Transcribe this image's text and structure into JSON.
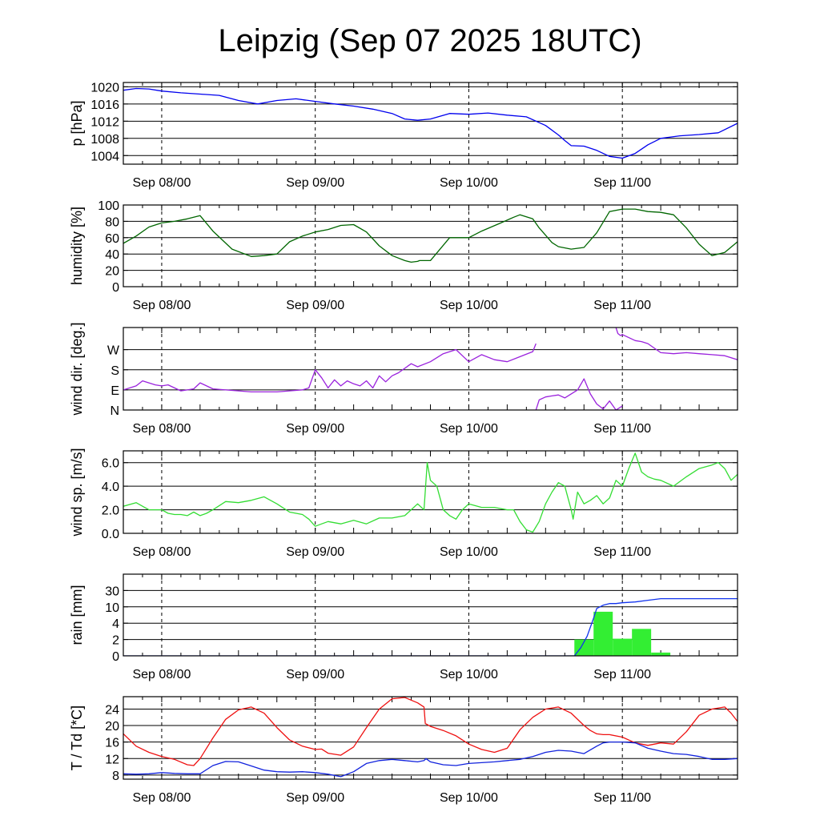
{
  "title": "Leipzig (Sep 07 2025 18UTC)",
  "chart_data": {
    "type": "line",
    "title": "Leipzig (Sep 07 2025 18UTC)",
    "x_unit": "hours since Sep 07 18UTC",
    "x_range": [
      0,
      96
    ],
    "x_ticks": [
      {
        "hour": 6,
        "label": "Sep 08/00"
      },
      {
        "hour": 30,
        "label": "Sep 09/00"
      },
      {
        "hour": 54,
        "label": "Sep 10/00"
      },
      {
        "hour": 78,
        "label": "Sep 11/00"
      }
    ],
    "panels": [
      {
        "id": "pressure",
        "ylabel": "p [hPa]",
        "ylim": [
          1002,
          1021
        ],
        "yticks": [
          1004,
          1008,
          1012,
          1016,
          1020
        ],
        "ytick_labels": [
          "1004",
          "1008",
          "1012",
          "1016",
          "1020"
        ],
        "series": [
          {
            "name": "pressure",
            "color": "#0000ee",
            "x": [
              0,
              2,
              4,
              6,
              9,
              12,
              15,
              18,
              21,
              24,
              27,
              30,
              33,
              36,
              39,
              42,
              44,
              46,
              48,
              51,
              54,
              57,
              60,
              63,
              66,
              68,
              69,
              70,
              72,
              74,
              76,
              78,
              80,
              82,
              84,
              87,
              90,
              93,
              96
            ],
            "y": [
              1019.2,
              1019.6,
              1019.5,
              1019.0,
              1018.6,
              1018.3,
              1018.0,
              1016.8,
              1016.0,
              1016.8,
              1017.2,
              1016.6,
              1016.0,
              1015.5,
              1014.8,
              1013.8,
              1012.5,
              1012.2,
              1012.5,
              1013.8,
              1013.6,
              1013.9,
              1013.4,
              1013.0,
              1011.0,
              1008.8,
              1007.5,
              1006.3,
              1006.2,
              1005.2,
              1003.8,
              1003.4,
              1004.5,
              1006.5,
              1008.0,
              1008.6,
              1008.9,
              1009.3,
              1011.5
            ]
          }
        ]
      },
      {
        "id": "humidity",
        "ylabel": "humidity [%]",
        "ylim": [
          0,
          100
        ],
        "yticks": [
          0,
          20,
          40,
          60,
          80,
          100
        ],
        "ytick_labels": [
          "0",
          "20",
          "40",
          "60",
          "80",
          "100"
        ],
        "series": [
          {
            "name": "humidity",
            "color": "#006600",
            "x": [
              0,
              2,
              4,
              6,
              8,
              10,
              12,
              14,
              17,
              20,
              22,
              24,
              26,
              28,
              30,
              32,
              34,
              36,
              38,
              40,
              42,
              44,
              45,
              46,
              46.3,
              48,
              51,
              54,
              56,
              59,
              61,
              62,
              64,
              65,
              66,
              67,
              68,
              70,
              72,
              74,
              76,
              78,
              80,
              82,
              84,
              86,
              88,
              90,
              92,
              94,
              96
            ],
            "y": [
              53,
              62,
              73,
              78,
              80,
              83,
              87,
              68,
              46,
              37,
              38,
              40,
              55,
              62,
              67,
              70,
              75,
              76,
              67,
              50,
              38,
              32,
              30,
              31,
              32,
              32,
              60,
              60,
              68,
              78,
              85,
              88,
              83,
              72,
              63,
              54,
              49,
              46,
              48,
              66,
              92,
              95,
              95,
              92,
              91,
              88,
              72,
              52,
              38,
              42,
              55
            ]
          }
        ]
      },
      {
        "id": "wind_direction",
        "ylabel": "wind dir. [deg.]",
        "ylim": [
          0,
          410
        ],
        "yticks": [
          0,
          100,
          200,
          300
        ],
        "ytick_labels": [
          "N",
          "E",
          "S",
          "W"
        ],
        "series": [
          {
            "name": "wind_direction",
            "color": "#9a22dd",
            "x": [
              0,
              2,
              3,
              5,
              6,
              7,
              9,
              11,
              12,
              14,
              16,
              18,
              20,
              22,
              24,
              26,
              28,
              29,
              30,
              31,
              32,
              33,
              34,
              35,
              36,
              37,
              38,
              39,
              40,
              41,
              42,
              43,
              45,
              46,
              48,
              50,
              52,
              53,
              54,
              56,
              58,
              60,
              62,
              64,
              64.5
            ],
            "y": [
              100,
              120,
              145,
              125,
              120,
              125,
              95,
              105,
              135,
              105,
              100,
              95,
              90,
              90,
              90,
              95,
              100,
              110,
              200,
              160,
              110,
              150,
              120,
              145,
              130,
              120,
              145,
              110,
              170,
              140,
              170,
              185,
              230,
              215,
              240,
              280,
              300,
              270,
              240,
              275,
              250,
              240,
              265,
              290,
              330
            ]
          },
          {
            "name": "wind_direction_2",
            "color": "#9a22dd",
            "x": [
              64.5,
              65,
              66,
              67,
              68,
              69,
              70,
              71,
              72,
              73,
              74,
              75,
              76,
              77,
              78
            ],
            "y": [
              0,
              50,
              65,
              70,
              75,
              60,
              80,
              100,
              155,
              80,
              30,
              5,
              45,
              0,
              20
            ]
          },
          {
            "name": "wind_direction_3",
            "color": "#9a22dd",
            "x": [
              77,
              77.3,
              77.7,
              78,
              79,
              80,
              81,
              82,
              84,
              86,
              88,
              90,
              92,
              94,
              96
            ],
            "y": [
              410,
              380,
              370,
              375,
              360,
              345,
              340,
              330,
              285,
              280,
              285,
              280,
              275,
              270,
              250
            ]
          }
        ]
      },
      {
        "id": "wind_speed",
        "ylabel": "wind sp. [m/s]",
        "ylim": [
          0,
          7.0
        ],
        "yticks": [
          0,
          2,
          4,
          6
        ],
        "ytick_labels": [
          "0.0",
          "2.0",
          "4.0",
          "6.0"
        ],
        "series": [
          {
            "name": "wind_speed",
            "color": "#33dd33",
            "x": [
              0,
              2,
              3,
              4,
              6,
              7,
              8,
              9,
              10,
              11,
              12,
              13,
              14,
              16,
              18,
              20,
              22,
              24,
              26,
              28,
              29,
              30,
              31,
              32,
              34,
              36,
              38,
              40,
              42,
              44,
              46,
              47,
              47.5,
              48,
              49,
              50,
              51,
              52,
              53,
              54,
              56,
              58,
              60,
              61,
              62,
              63,
              64,
              65,
              66,
              67,
              68,
              69,
              70,
              70.3,
              71,
              72,
              73,
              74,
              75,
              76,
              77,
              78,
              79,
              80,
              81,
              82,
              83,
              84,
              86,
              88,
              90,
              92,
              93,
              94,
              95,
              96
            ],
            "y": [
              2.3,
              2.6,
              2.3,
              2.0,
              2.0,
              1.7,
              1.6,
              1.6,
              1.5,
              1.8,
              1.5,
              1.7,
              2.0,
              2.7,
              2.6,
              2.8,
              3.1,
              2.5,
              1.8,
              1.6,
              1.2,
              0.6,
              0.8,
              1.0,
              0.8,
              1.1,
              0.8,
              1.3,
              1.3,
              1.5,
              2.5,
              2.0,
              6.0,
              4.5,
              4.0,
              2.0,
              1.5,
              1.2,
              2.0,
              2.5,
              2.2,
              2.2,
              2.0,
              2.0,
              1.0,
              0.3,
              0.1,
              1.0,
              2.5,
              3.5,
              4.3,
              4.0,
              2.0,
              1.2,
              3.5,
              2.5,
              2.8,
              3.2,
              2.5,
              3.0,
              4.5,
              4.0,
              5.5,
              6.8,
              5.2,
              4.8,
              4.6,
              4.5,
              4.0,
              4.8,
              5.5,
              5.8,
              6.0,
              5.5,
              4.5,
              5.0
            ]
          }
        ]
      },
      {
        "id": "rain",
        "ylabel": "rain [mm]",
        "ylim": [
          0,
          5
        ],
        "yticks": [
          0,
          1,
          2,
          3,
          4,
          5
        ],
        "ytick_labels": [
          "0",
          "2",
          "4",
          "10",
          "30",
          ""
        ],
        "bars": {
          "name": "rain per 3h",
          "color": "#33ee33",
          "x_start": [
            70.5,
            73.5,
            76.5,
            79.5,
            82.5
          ],
          "x_end": [
            73.5,
            76.5,
            79.5,
            82.5,
            85.5
          ],
          "values": [
            1.0,
            2.7,
            1.05,
            1.65,
            0.2
          ]
        },
        "series": [
          {
            "name": "rain cumulative",
            "color": "#1133ee",
            "x": [
              0,
              70.5,
              71.5,
              72.5,
              73.5,
              74,
              75,
              76,
              77,
              78,
              80,
              82,
              84,
              86,
              88,
              90,
              92,
              94,
              96
            ],
            "y": [
              0,
              0,
              0.5,
              1.2,
              2.3,
              2.9,
              3.1,
              3.2,
              3.2,
              3.25,
              3.3,
              3.4,
              3.5,
              3.5,
              3.5,
              3.5,
              3.5,
              3.5,
              3.5
            ]
          }
        ]
      },
      {
        "id": "temperature",
        "ylabel": "T / Td [*C]",
        "ylim": [
          7,
          27
        ],
        "yticks": [
          8,
          12,
          16,
          20,
          24
        ],
        "ytick_labels": [
          "8",
          "12",
          "16",
          "20",
          "24"
        ],
        "series": [
          {
            "name": "T",
            "color": "#ee1111",
            "x": [
              0,
              2,
              4,
              6,
              8,
              10,
              11,
              12,
              14,
              16,
              18,
              20,
              22,
              24,
              26,
              28,
              30,
              31,
              32,
              34,
              36,
              38,
              40,
              42,
              44,
              46,
              47,
              47.2,
              48,
              50,
              52,
              54,
              56,
              58,
              60,
              62,
              64,
              66,
              68,
              70,
              72,
              73,
              74,
              75,
              76,
              78,
              80,
              82,
              84,
              86,
              88,
              90,
              92,
              94,
              95,
              96
            ],
            "y": [
              18,
              15,
              13.5,
              12.5,
              11.8,
              10.5,
              10.3,
              12,
              17,
              21.5,
              23.8,
              24.5,
              23,
              19.5,
              16.5,
              15,
              14.2,
              14.3,
              13.3,
              12.8,
              14.8,
              19.5,
              24,
              26.5,
              26.8,
              25.5,
              24.5,
              20.5,
              19.8,
              18.8,
              17.5,
              15.5,
              14.2,
              13.5,
              14.5,
              19,
              22,
              24,
              24.5,
              23,
              20,
              18.8,
              18,
              17.8,
              17.8,
              17.2,
              15.8,
              15.2,
              15.8,
              15.5,
              18.5,
              22.5,
              24,
              24.5,
              23,
              21
            ]
          },
          {
            "name": "Td",
            "color": "#1122dd",
            "x": [
              0,
              2,
              4,
              6,
              8,
              10,
              12,
              14,
              16,
              18,
              20,
              22,
              24,
              26,
              28,
              30,
              32,
              34,
              36,
              38,
              40,
              42,
              44,
              46,
              47,
              47.3,
              48,
              50,
              52,
              54,
              56,
              58,
              60,
              62,
              64,
              66,
              68,
              70,
              72,
              74,
              75,
              76,
              78,
              80,
              82,
              84,
              86,
              88,
              90,
              92,
              94,
              96
            ],
            "y": [
              8.3,
              8.2,
              8.3,
              8.6,
              8.4,
              8.3,
              8.3,
              10.3,
              11.3,
              11.2,
              10.2,
              9.2,
              8.8,
              8.7,
              8.8,
              8.6,
              8.2,
              7.6,
              8.8,
              10.8,
              11.5,
              11.8,
              11.5,
              11.2,
              11.5,
              12,
              11.2,
              10.5,
              10.3,
              10.8,
              11,
              11.2,
              11.5,
              11.8,
              12.5,
              13.5,
              14,
              13.8,
              13.2,
              15,
              15.8,
              16,
              16,
              15.8,
              14.5,
              13.8,
              13.2,
              13,
              12.5,
              11.8,
              11.8,
              12
            ]
          }
        ]
      }
    ]
  }
}
